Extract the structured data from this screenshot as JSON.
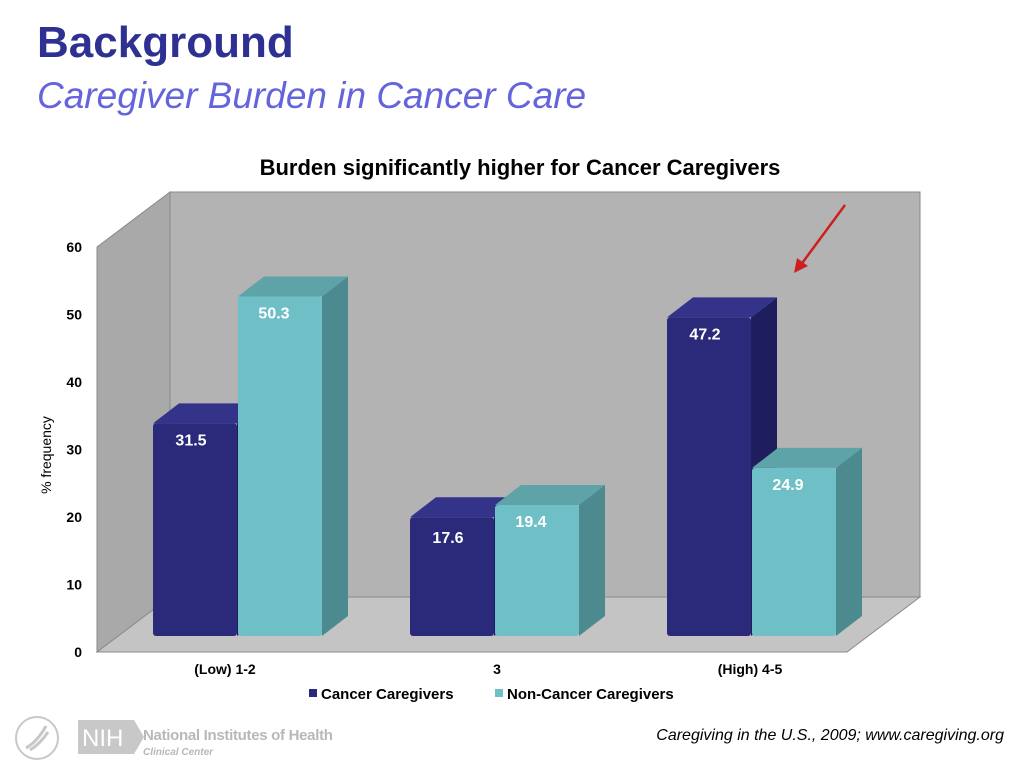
{
  "header": {
    "title": "Background",
    "subtitle": "Caregiver Burden in Cancer Care"
  },
  "chart_data": {
    "type": "bar",
    "title": "Burden  significantly higher for Cancer Caregivers",
    "ylabel": "% frequency",
    "xlabel": "",
    "ylim": [
      0,
      60
    ],
    "yticks": [
      0,
      10,
      20,
      30,
      40,
      50,
      60
    ],
    "categories": [
      "(Low) 1-2",
      "3",
      "(High) 4-5"
    ],
    "series": [
      {
        "name": "Cancer Caregivers",
        "values": [
          31.5,
          17.6,
          47.2
        ],
        "color": "#2b2a7a"
      },
      {
        "name": "Non-Cancer Caregivers",
        "values": [
          50.3,
          19.4,
          24.9
        ],
        "color": "#6fc0c6"
      }
    ],
    "legend": "bottom",
    "style": "3d",
    "annotation": "red-arrow-pointing-to-high-group"
  },
  "footer": {
    "source": "Caregiving in the U.S., 2009; www.caregiving.org",
    "logo_text": "NIH",
    "org_name": "National Institutes of Health",
    "org_sub": "Clinical Center"
  }
}
